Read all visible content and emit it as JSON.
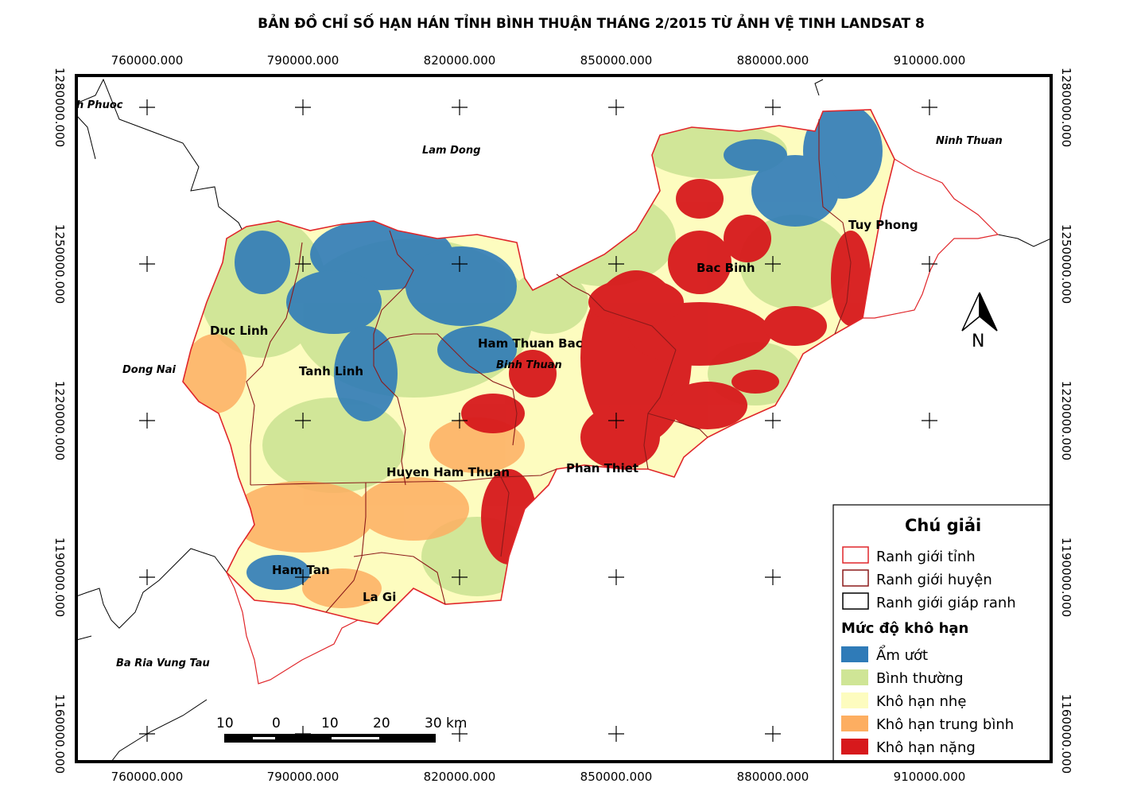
{
  "title": "BẢN ĐỒ CHỈ SỐ HẠN HÁN TỈNH BÌNH THUẬN THÁNG 2/2015 TỪ ẢNH VỆ TINH LANDSAT 8",
  "grid": {
    "x_labels": [
      "760000.000",
      "790000.000",
      "820000.000",
      "850000.000",
      "880000.000",
      "910000.000"
    ],
    "y_labels": [
      "1280000.000",
      "1250000.000",
      "1220000.000",
      "1190000.000",
      "1160000.000"
    ]
  },
  "districts": {
    "duc_linh": "Duc Linh",
    "tanh_linh": "Tanh Linh",
    "ham_thuan_bac": "Ham Thuan Bac",
    "huyen_ham_thuan": "Huyen Ham Thuan",
    "phan_thiet": "Phan Thiet",
    "bac_binh": "Bac Binh",
    "tuy_phong": "Tuy Phong",
    "ham_tan": "Ham Tan",
    "la_gi": "La Gi"
  },
  "regions": {
    "binh_phuoc": "h Phuoc",
    "lam_dong": "Lam Dong",
    "ninh_thuan": "Ninh Thuan",
    "dong_nai": "Dong Nai",
    "binh_thuan": "Binh Thuan",
    "ba_ria": "Ba Ria Vung Tau"
  },
  "north_label": "N",
  "scale_bar": {
    "labels": [
      "10",
      "0",
      "10",
      "20",
      "30 km"
    ]
  },
  "legend": {
    "title": "Chú giải",
    "boundaries": [
      {
        "label": "Ranh giới tỉnh",
        "color": "#e0262a"
      },
      {
        "label": "Ranh giới huyện",
        "color": "#8c1a1a"
      },
      {
        "label": "Ranh giới giáp ranh",
        "color": "#000000"
      }
    ],
    "classes_title": "Mức độ khô hạn",
    "classes": [
      {
        "label": "Ẩm ướt",
        "color": "#2f7bb8"
      },
      {
        "label": "Bình thường",
        "color": "#cfe596"
      },
      {
        "label": "Khô hạn nhẹ",
        "color": "#fdfcbf"
      },
      {
        "label": "Khô hạn trung bình",
        "color": "#fdae61"
      },
      {
        "label": "Khô hạn nặng",
        "color": "#d7191c"
      }
    ]
  }
}
